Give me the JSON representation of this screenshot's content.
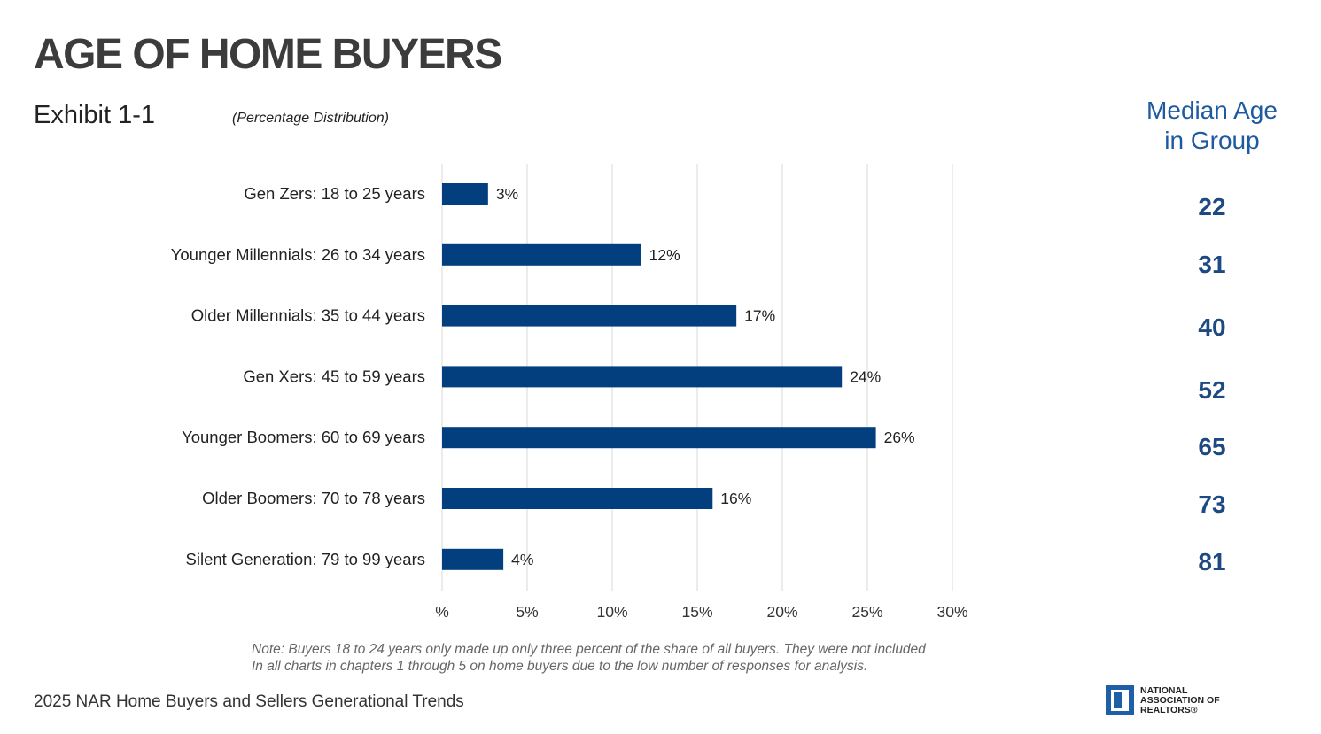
{
  "header": {
    "title": "AGE OF HOME BUYERS",
    "exhibit": "Exhibit 1-1",
    "subtitle": "(Percentage Distribution)"
  },
  "median_panel": {
    "heading_line1": "Median Age",
    "heading_line2": "in Group",
    "values": [
      "22",
      "31",
      "40",
      "52",
      "65",
      "73",
      "81"
    ]
  },
  "note": {
    "line1": "Note: Buyers 18 to 24 years only made up only three percent of the share of all buyers. They were not included",
    "line2": "In all charts in chapters 1 through 5 on home buyers due to the low number of responses for analysis."
  },
  "footer": {
    "source": "2025 NAR Home Buyers and Sellers Generational Trends"
  },
  "logo": {
    "line1": "NATIONAL",
    "line2": "ASSOCIATION OF",
    "line3": "REALTORS®"
  },
  "colors": {
    "bar": "#033f7f",
    "median_heading": "#1e5aa0",
    "median_values": "#1e4a84",
    "grid": "#d9d9d9"
  },
  "chart_data": {
    "type": "bar",
    "orientation": "horizontal",
    "categories": [
      "Gen Zers: 18 to 25 years",
      "Younger Millennials: 26 to 34 years",
      "Older Millennials: 35 to 44 years",
      "Gen Xers: 45 to 59 years",
      "Younger Boomers: 60 to 69 years",
      "Older Boomers: 70 to 78 years",
      "Silent Generation: 79 to 99 years"
    ],
    "values": [
      2.7,
      11.7,
      17.3,
      23.5,
      25.5,
      15.9,
      3.6
    ],
    "data_labels": [
      "3%",
      "12%",
      "17%",
      "24%",
      "26%",
      "16%",
      "4%"
    ],
    "xlim": [
      0,
      30
    ],
    "x_ticks": [
      0,
      5,
      10,
      15,
      20,
      25,
      30
    ],
    "x_tick_labels": [
      "%",
      "5%",
      "10%",
      "15%",
      "20%",
      "25%",
      "30%"
    ],
    "grid": true,
    "xlabel": "",
    "ylabel": ""
  }
}
